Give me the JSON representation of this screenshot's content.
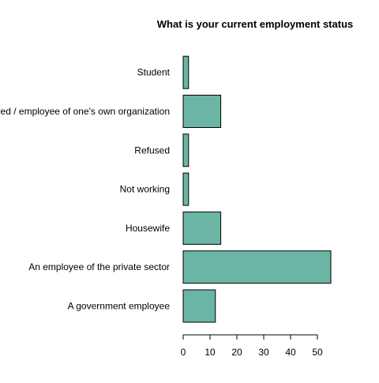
{
  "chart_data": {
    "type": "bar",
    "orientation": "horizontal",
    "title": "What is your current employment status",
    "categories": [
      "A government employee",
      "An employee of the private sector",
      "Housewife",
      "Not working",
      "Refused",
      "Self-employed / employee of one's own organization",
      "Student"
    ],
    "values": [
      12,
      55,
      14,
      2,
      2,
      14,
      2
    ],
    "xlim": [
      0,
      55
    ],
    "xticks": [
      0,
      10,
      20,
      30,
      40,
      50
    ],
    "grid": false,
    "bar_color": "#6bb5a5",
    "border_color": "#000000"
  }
}
